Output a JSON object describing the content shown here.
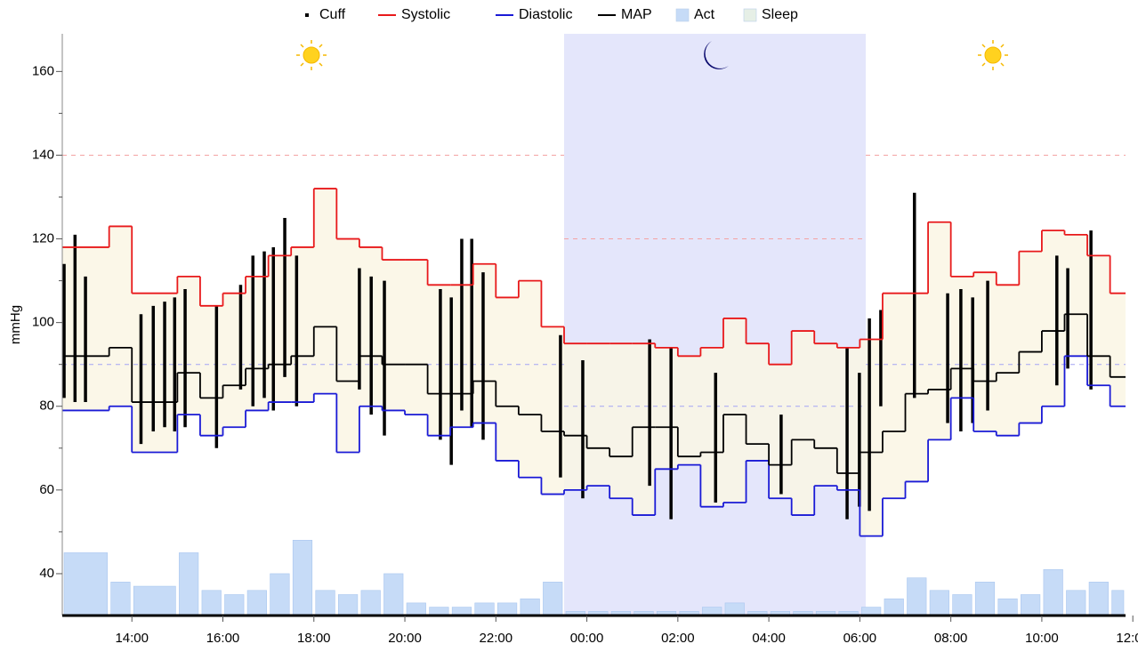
{
  "chart_data": {
    "type": "line",
    "y_label": "mmHg",
    "xlim": [
      12.47,
      35.84
    ],
    "xticks": [
      {
        "value": 14,
        "label": "14:00"
      },
      {
        "value": 16,
        "label": "16:00"
      },
      {
        "value": 18,
        "label": "18:00"
      },
      {
        "value": 20,
        "label": "20:00"
      },
      {
        "value": 22,
        "label": "22:00"
      },
      {
        "value": 24,
        "label": "00:00"
      },
      {
        "value": 26,
        "label": "02:00"
      },
      {
        "value": 28,
        "label": "04:00"
      },
      {
        "value": 30,
        "label": "06:00"
      },
      {
        "value": 32,
        "label": "08:00"
      },
      {
        "value": 34,
        "label": "10:00"
      },
      {
        "value": 36,
        "label": "12:00"
      }
    ],
    "ylim": [
      30,
      169
    ],
    "yticks": [
      40,
      60,
      80,
      100,
      120,
      140,
      160
    ],
    "yminorticks": [
      50,
      70,
      90,
      110,
      130,
      150
    ],
    "x": [
      12.47,
      13.5,
      14,
      15,
      15.5,
      16,
      16.5,
      17,
      17.5,
      18,
      18.5,
      19,
      19.5,
      20,
      20.5,
      21,
      21.5,
      22,
      22.5,
      23,
      23.5,
      24,
      24.5,
      25,
      25.5,
      26,
      26.5,
      27,
      27.5,
      28,
      28.5,
      29,
      29.5,
      30,
      30.5,
      31,
      31.5,
      32,
      32.5,
      33,
      33.5,
      34,
      34.5,
      35,
      35.5
    ],
    "series": [
      {
        "name": "Systolic",
        "color": "#e8191b",
        "kind": "step",
        "values": [
          118,
          123,
          107,
          111,
          104,
          107,
          111,
          116,
          118,
          132,
          120,
          118,
          115,
          115,
          109,
          109,
          114,
          106,
          110,
          99,
          95,
          95,
          95,
          95,
          94,
          92,
          94,
          101,
          95,
          90,
          98,
          95,
          94,
          96,
          107,
          107,
          124,
          111,
          112,
          109,
          117,
          122,
          121,
          116,
          107
        ]
      },
      {
        "name": "Diastolic",
        "color": "#1a1ad6",
        "kind": "step",
        "values": [
          79,
          80,
          69,
          78,
          73,
          75,
          79,
          81,
          81,
          83,
          69,
          80,
          79,
          78,
          73,
          75,
          76,
          67,
          63,
          59,
          60,
          61,
          58,
          54,
          65,
          66,
          56,
          57,
          67,
          58,
          54,
          61,
          60,
          49,
          58,
          62,
          72,
          82,
          74,
          73,
          76,
          80,
          92,
          85,
          80
        ]
      },
      {
        "name": "MAP",
        "color": "#000000",
        "kind": "step",
        "values": [
          92,
          94,
          81,
          88,
          82,
          85,
          89,
          90,
          92,
          99,
          86,
          92,
          90,
          90,
          83,
          83,
          86,
          80,
          78,
          74,
          73,
          70,
          68,
          75,
          75,
          68,
          69,
          78,
          71,
          66,
          72,
          70,
          64,
          69,
          74,
          83,
          84,
          89,
          86,
          88,
          93,
          98,
          102,
          92,
          87
        ]
      },
      {
        "name": "Act",
        "color": "#c6dbf7",
        "kind": "bar",
        "values": [
          45,
          38,
          37,
          45,
          36,
          35,
          36,
          40,
          48,
          36,
          35,
          36,
          40,
          33,
          32,
          32,
          33,
          33,
          34,
          38,
          31,
          31,
          31,
          31,
          31,
          31,
          32,
          33,
          31,
          31,
          31,
          31,
          31,
          32,
          34,
          39,
          36,
          35,
          38,
          34,
          35,
          41,
          36,
          38,
          36
        ]
      }
    ],
    "cuff": {
      "name": "Cuff",
      "color": "#000000",
      "x": [
        12.51,
        12.75,
        12.98,
        14.2,
        14.47,
        14.72,
        14.94,
        15.17,
        15.86,
        16.39,
        16.66,
        16.91,
        17.11,
        17.36,
        17.62,
        19.0,
        19.26,
        19.55,
        20.78,
        21.02,
        21.25,
        21.47,
        21.72,
        23.42,
        23.91,
        25.38,
        25.85,
        26.83,
        28.27,
        29.72,
        29.99,
        30.21,
        30.46,
        31.2,
        31.93,
        32.22,
        32.48,
        32.81,
        34.33,
        34.57,
        35.08
      ],
      "low": [
        82,
        81,
        81,
        71,
        74,
        75,
        74,
        75,
        70,
        84,
        80,
        82,
        79,
        87,
        80,
        84,
        78,
        73,
        72,
        66,
        79,
        75,
        72,
        63,
        58,
        61,
        53,
        57,
        59,
        53,
        56,
        55,
        80,
        82,
        76,
        74,
        76,
        79,
        85,
        89,
        84
      ],
      "high": [
        114,
        121,
        111,
        102,
        104,
        105,
        106,
        108,
        104,
        109,
        116,
        117,
        118,
        125,
        116,
        113,
        111,
        110,
        108,
        106,
        120,
        120,
        112,
        97,
        91,
        96,
        94,
        88,
        78,
        94,
        88,
        101,
        103,
        131,
        107,
        108,
        106,
        110,
        116,
        113,
        122
      ]
    },
    "sleep": {
      "name": "Sleep",
      "color": "#e6efe6",
      "region_color": "#e4e6fb",
      "start": 23.5,
      "end": 30.13
    },
    "limits": {
      "day": {
        "systolic": 140,
        "diastolic": 90
      },
      "night": {
        "systolic": 120,
        "diastolic": 80
      }
    }
  }
}
